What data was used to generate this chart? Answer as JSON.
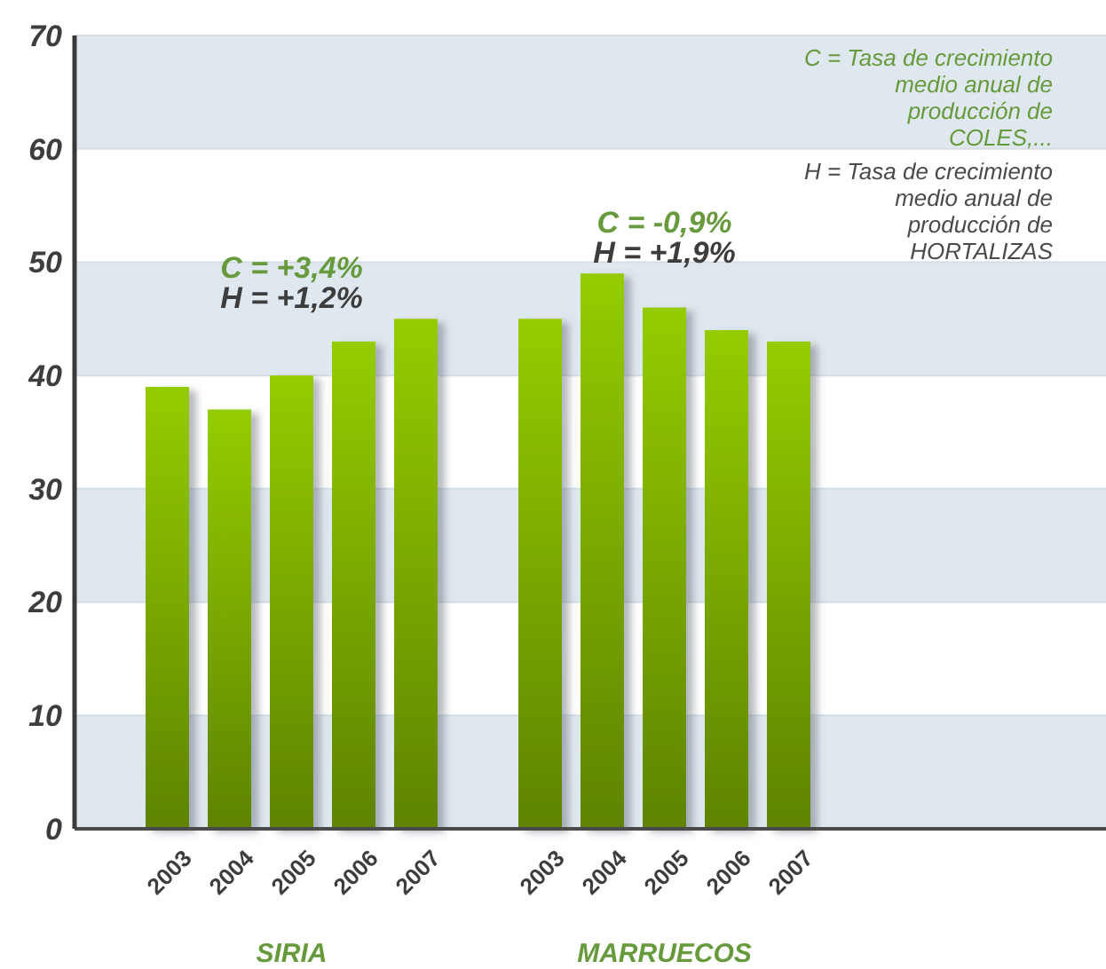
{
  "chart_data": {
    "type": "bar",
    "categories": [
      "2003",
      "2004",
      "2005",
      "2006",
      "2007",
      null,
      "2003",
      "2004",
      "2005",
      "2006",
      "2007"
    ],
    "values": [
      39,
      37,
      40,
      43,
      45,
      null,
      45,
      49,
      46,
      44,
      43
    ],
    "color": "#7aa800",
    "ylim": [
      0,
      70
    ],
    "yticks": [
      0,
      10,
      20,
      30,
      40,
      50,
      60,
      70
    ],
    "grid": "y",
    "annotations": [
      "SIRIA",
      "MARRUECOS",
      "C = +3,4%",
      "H = +1,2%",
      "C = -0,9%",
      "H = +1,9%",
      "C = Tasa de crecimiento\nmedio anual de\nproducción de\nCOLES,...",
      "H = Tasa de crecimiento\nmedio anual de\nproducción de\nHORTALIZAS"
    ]
  }
}
